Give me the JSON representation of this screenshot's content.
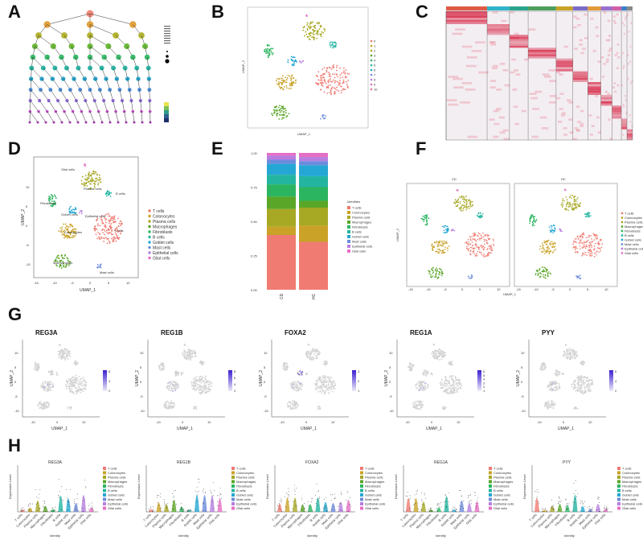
{
  "panel_letters": [
    "A",
    "B",
    "C",
    "D",
    "E",
    "F",
    "G",
    "H"
  ],
  "celltypes": [
    "T cells",
    "Colonocytes",
    "Plasma cells",
    "Macrophages",
    "Fibroblasts",
    "B cells",
    "Goblet cells",
    "Mast cells",
    "Epithelial cells",
    "Glial cells"
  ],
  "colors": {
    "T cells": "#f07b72",
    "Colonocytes": "#c9a227",
    "Plasma cells": "#a7a824",
    "Macrophages": "#5aa628",
    "Fibroblasts": "#2cb560",
    "B cells": "#24b5a1",
    "Goblet cells": "#24a7d4",
    "Mast cells": "#6c8bdc",
    "Epithelial cells": "#b77ee0",
    "Glial cells": "#e66fc6"
  },
  "panelB": {
    "xlabel": "UMAP_1",
    "ylabel": "UMAP_2",
    "legend": [
      "0",
      "1",
      "2",
      "3",
      "4",
      "5",
      "6",
      "7",
      "8",
      "9",
      "10"
    ]
  },
  "panelD": {
    "xlabel": "UMAP_1",
    "ylabel": "UMAP_2",
    "xticks": [
      "-15",
      "-10",
      "-5",
      "0",
      "5",
      "10"
    ],
    "yticks": [
      "10",
      "5",
      "0",
      "-5",
      "-10"
    ],
    "cluster_labels": {
      "glial": "Glial cells",
      "plasma": "Plasma cells",
      "mast_top": "B cells",
      "fibro": "Fibroblasts",
      "goblet": "Goblet cells",
      "epi": "Epithelial cells",
      "colono": "Colonocytes",
      "tcell": "T cells",
      "macro": "Macrophages",
      "mast": "Mast cells"
    }
  },
  "chart_data": {
    "type": "bar",
    "stacked": true,
    "title": "",
    "categories": [
      "CD",
      "HC"
    ],
    "ylabel": "",
    "yticks": [
      "0.00",
      "0.25",
      "0.50",
      "0.75",
      "1.00"
    ],
    "ylim": [
      0,
      1
    ],
    "legend_title": "Identities",
    "series": [
      {
        "name": "T cells",
        "values": [
          0.4,
          0.35
        ]
      },
      {
        "name": "Colonocytes",
        "values": [
          0.06,
          0.12
        ]
      },
      {
        "name": "Plasma cells",
        "values": [
          0.13,
          0.13
        ]
      },
      {
        "name": "Macrophages",
        "values": [
          0.09,
          0.05
        ]
      },
      {
        "name": "Fibroblasts",
        "values": [
          0.09,
          0.1
        ]
      },
      {
        "name": "B cells",
        "values": [
          0.07,
          0.08
        ]
      },
      {
        "name": "Goblet cells",
        "values": [
          0.08,
          0.08
        ]
      },
      {
        "name": "Mast cells",
        "values": [
          0.03,
          0.03
        ]
      },
      {
        "name": "Epithelial cells",
        "values": [
          0.03,
          0.03
        ]
      },
      {
        "name": "Glial cells",
        "values": [
          0.02,
          0.03
        ]
      }
    ]
  },
  "panelF": {
    "xlabel": "UMAP_1",
    "ylabel": "UMAP_2",
    "titles": [
      "CD",
      "HC"
    ],
    "xticks": [
      "-15",
      "-10",
      "-5",
      "0",
      "5",
      "10",
      "-15",
      "-10",
      "-5",
      "0",
      "5",
      "10"
    ]
  },
  "panelG": {
    "xlabel": "UMAP_1",
    "ylabel": "UMAP_2",
    "xticks": [
      "-10",
      "0",
      "10"
    ],
    "yticks": [
      "10",
      "5",
      "0",
      "-5",
      "-10"
    ],
    "genes": [
      {
        "name": "REG3A",
        "scale": [
          "6",
          "4",
          "2"
        ]
      },
      {
        "name": "REG1B",
        "scale": [
          "8",
          "6",
          "4",
          "2"
        ]
      },
      {
        "name": "FOXA2",
        "scale": [
          "3",
          "2",
          "1"
        ]
      },
      {
        "name": "REG1A",
        "scale": [
          "6",
          "5",
          "4",
          "3",
          "2",
          "1"
        ]
      },
      {
        "name": "PYY",
        "scale": [
          "6",
          "4",
          "2"
        ]
      }
    ]
  },
  "panelH": {
    "xlabel": "Identity",
    "ylabel": "Expression Level",
    "genes": [
      "REG3A",
      "REG1B",
      "FOXA2",
      "REG1A",
      "PYY"
    ]
  }
}
